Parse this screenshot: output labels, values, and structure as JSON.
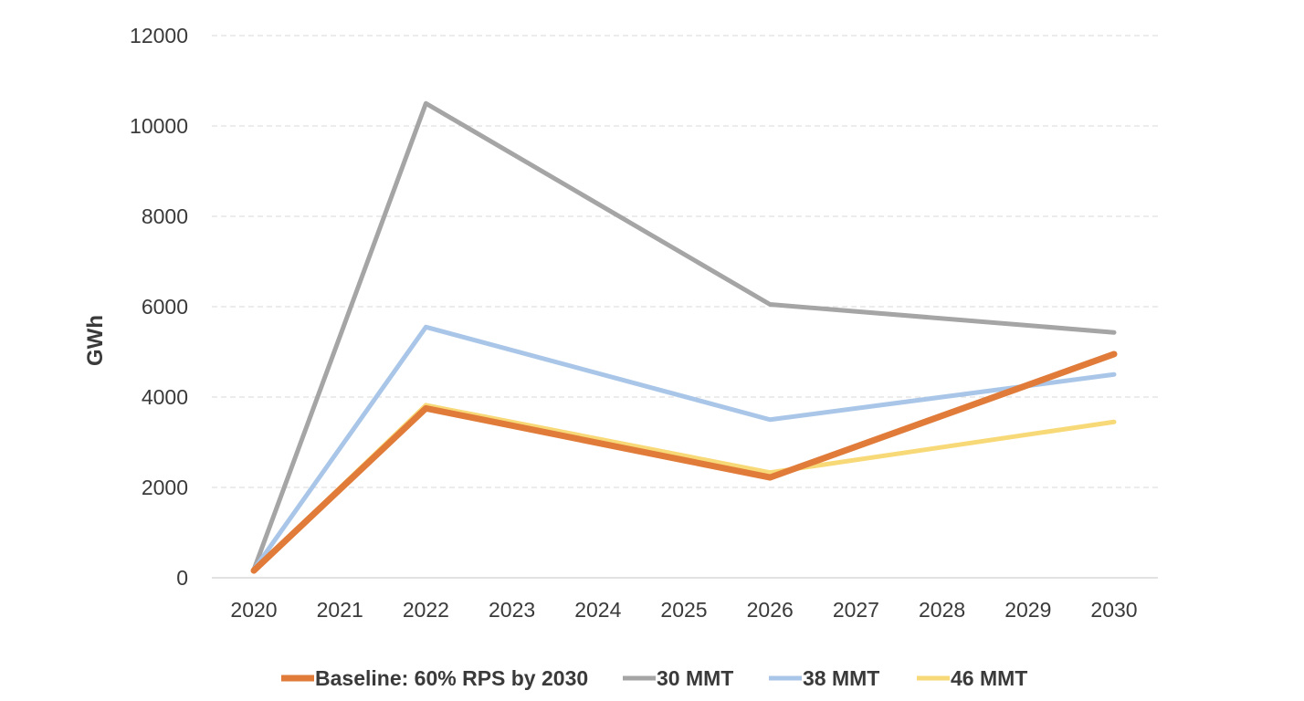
{
  "chart_data": {
    "type": "line",
    "title": "",
    "xlabel": "",
    "ylabel": "GWh",
    "ylim": [
      0,
      12000
    ],
    "yticks": [
      0,
      2000,
      4000,
      6000,
      8000,
      10000,
      12000
    ],
    "grid": true,
    "legend_position": "bottom",
    "categories": [
      "2020",
      "2021",
      "2022",
      "2023",
      "2024",
      "2025",
      "2026",
      "2027",
      "2028",
      "2029",
      "2030"
    ],
    "series": [
      {
        "name": "30 MMT",
        "color": "#a5a5a5",
        "x": [
          "2020",
          "2022",
          "2026",
          "2030"
        ],
        "values": [
          180,
          10500,
          6050,
          5430
        ]
      },
      {
        "name": "38 MMT",
        "color": "#a9c6e8",
        "x": [
          "2020",
          "2022",
          "2026",
          "2030"
        ],
        "values": [
          180,
          5550,
          3500,
          4500
        ]
      },
      {
        "name": "46 MMT",
        "color": "#f8d978",
        "x": [
          "2020",
          "2022",
          "2026",
          "2030"
        ],
        "values": [
          160,
          3820,
          2330,
          3450
        ]
      },
      {
        "name": "Baseline: 60% RPS by 2030",
        "color": "#e07b39",
        "x": [
          "2020",
          "2022",
          "2026",
          "2030"
        ],
        "values": [
          160,
          3750,
          2220,
          4950
        ]
      }
    ],
    "legend_order": [
      "Baseline: 60% RPS by 2030",
      "30 MMT",
      "38 MMT",
      "46 MMT"
    ]
  }
}
